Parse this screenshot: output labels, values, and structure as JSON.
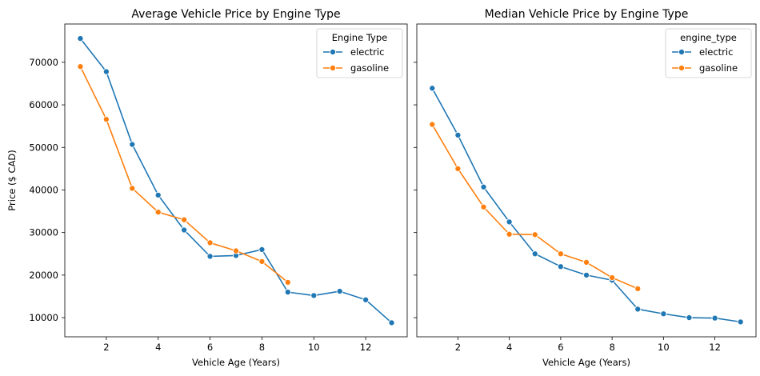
{
  "chart_data": [
    {
      "type": "line",
      "title": "Average Vehicle Price by Engine Type",
      "xlabel": "Vehicle Age (Years)",
      "ylabel": "Price ($ CAD)",
      "xlim": [
        0.4,
        13.6
      ],
      "ylim": [
        5500,
        79000
      ],
      "xticks": [
        2,
        4,
        6,
        8,
        10,
        12
      ],
      "yticks": [
        10000,
        20000,
        30000,
        40000,
        50000,
        60000,
        70000
      ],
      "grid": false,
      "legend": {
        "title": "Engine Type",
        "position": "top-right"
      },
      "series": [
        {
          "name": "electric",
          "color": "#1f77b4",
          "x": [
            1,
            2,
            3,
            4,
            5,
            6,
            7,
            8,
            9,
            10,
            11,
            12,
            13
          ],
          "y": [
            75600,
            67800,
            50700,
            38800,
            30600,
            24400,
            24600,
            26000,
            16000,
            15200,
            16200,
            14200,
            8800
          ]
        },
        {
          "name": "gasoline",
          "color": "#ff7f0e",
          "x": [
            1,
            2,
            3,
            4,
            5,
            6,
            7,
            8,
            9
          ],
          "y": [
            69000,
            56600,
            40400,
            34800,
            33000,
            27600,
            25700,
            23200,
            18300
          ]
        }
      ]
    },
    {
      "type": "line",
      "title": "Median Vehicle Price by Engine Type",
      "xlabel": "Vehicle Age (Years)",
      "ylabel": "",
      "xlim": [
        0.4,
        13.6
      ],
      "ylim": [
        5500,
        79000
      ],
      "xticks": [
        2,
        4,
        6,
        8,
        10,
        12
      ],
      "yticks": [
        10000,
        20000,
        30000,
        40000,
        50000,
        60000,
        70000
      ],
      "show_ytick_labels": false,
      "grid": false,
      "legend": {
        "title": "engine_type",
        "position": "top-right"
      },
      "series": [
        {
          "name": "electric",
          "color": "#1f77b4",
          "x": [
            1,
            2,
            3,
            4,
            5,
            6,
            7,
            8,
            9,
            10,
            11,
            12,
            13
          ],
          "y": [
            63900,
            52900,
            40700,
            32500,
            25000,
            22000,
            20000,
            18800,
            12000,
            10900,
            10000,
            9900,
            9000
          ]
        },
        {
          "name": "gasoline",
          "color": "#ff7f0e",
          "x": [
            1,
            2,
            3,
            4,
            5,
            6,
            7,
            8,
            9
          ],
          "y": [
            55400,
            45000,
            36000,
            29600,
            29500,
            25000,
            23000,
            19400,
            16800
          ]
        }
      ]
    }
  ]
}
